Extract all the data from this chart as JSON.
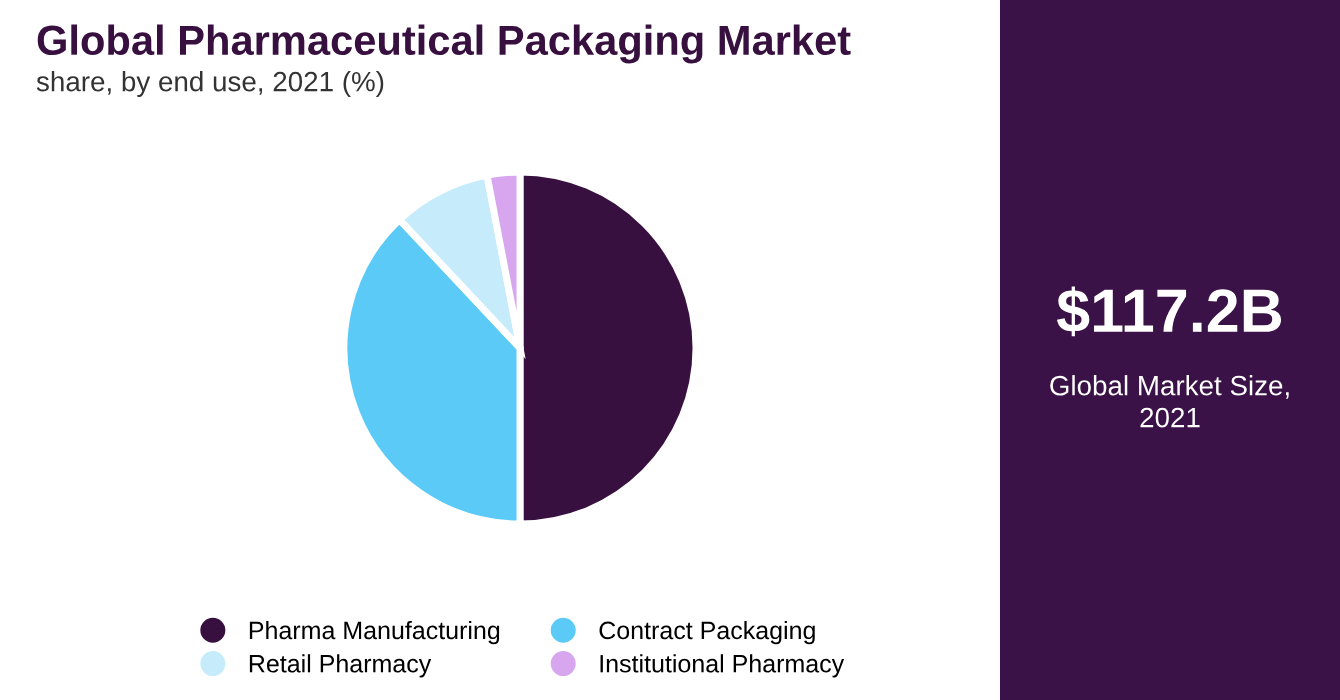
{
  "chart_data": {
    "type": "pie",
    "title": "Global Pharmaceutical Packaging Market",
    "subtitle": "share, by end use, 2021 (%)",
    "categories": [
      "Pharma Manufacturing",
      "Contract Packaging",
      "Retail Pharmacy",
      "Institutional Pharmacy"
    ],
    "values": [
      50,
      38,
      9,
      3
    ],
    "colors": [
      "#37103f",
      "#5ccaf7",
      "#c6ecfb",
      "#d7a6ee"
    ],
    "legend": "bottom",
    "annotations": [
      "$117.2B",
      "Global Market Size,\n2021"
    ]
  }
}
